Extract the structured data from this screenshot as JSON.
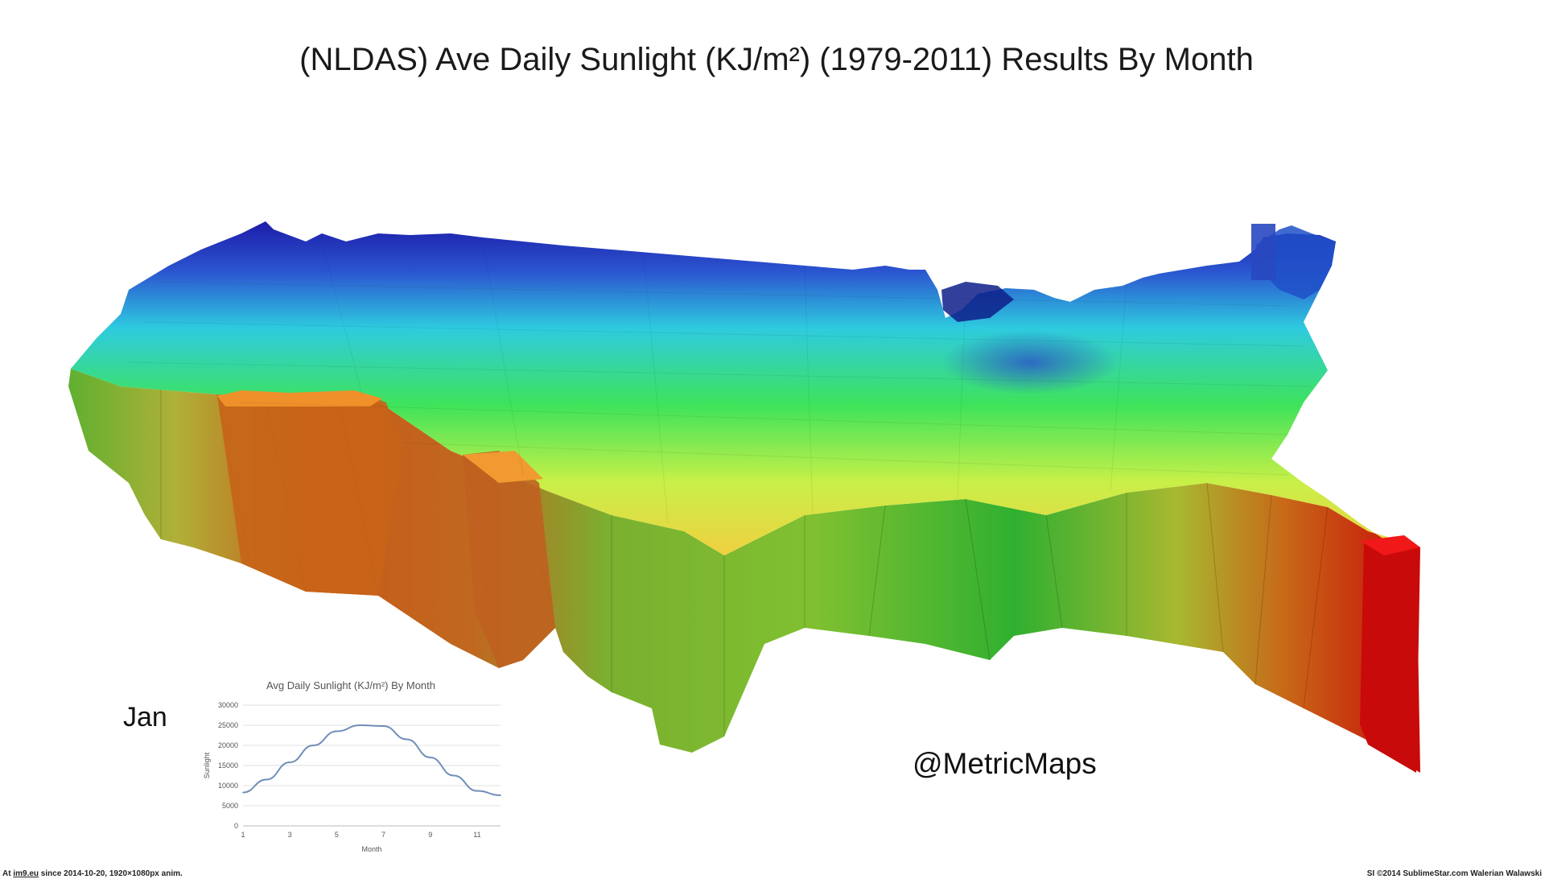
{
  "title": "(NLDAS) Ave Daily Sunlight (KJ/m²) (1979-2011) Results By Month",
  "month_label": "Jan",
  "handle": "@MetricMaps",
  "map": {
    "name": "3D extruded map of contiguous US sunlight",
    "colors": {
      "low": "#1f1fb0",
      "low_mid": "#2ec8e0",
      "mid": "#3fe03a",
      "mid_high": "#d4f040",
      "high": "#f08a20",
      "max": "#d80a0a"
    }
  },
  "footer": {
    "left_prefix": "At ",
    "left_link": "im9.eu",
    "left_suffix": " since 2014-10-20, 1920×1080px anim.",
    "right": "SI ©2014 SublimeStar.com Walerian Walawski"
  },
  "chart_data": {
    "type": "line",
    "title": "Avg Daily Sunlight (KJ/m²) By Month",
    "xlabel": "Month",
    "ylabel": "Sunlight",
    "x": [
      1,
      2,
      3,
      4,
      5,
      6,
      7,
      8,
      9,
      10,
      11,
      12
    ],
    "values": [
      8300,
      11500,
      15800,
      20000,
      23500,
      25000,
      24800,
      21500,
      17000,
      12500,
      8700,
      7600
    ],
    "xticks": [
      "1",
      "3",
      "5",
      "7",
      "9",
      "11"
    ],
    "yticks": [
      "0",
      "5000",
      "10000",
      "15000",
      "20000",
      "25000",
      "30000"
    ],
    "ylim": [
      0,
      30000
    ],
    "xlim": [
      1,
      12
    ],
    "grid": true,
    "line_color": "#6f8fb8"
  }
}
